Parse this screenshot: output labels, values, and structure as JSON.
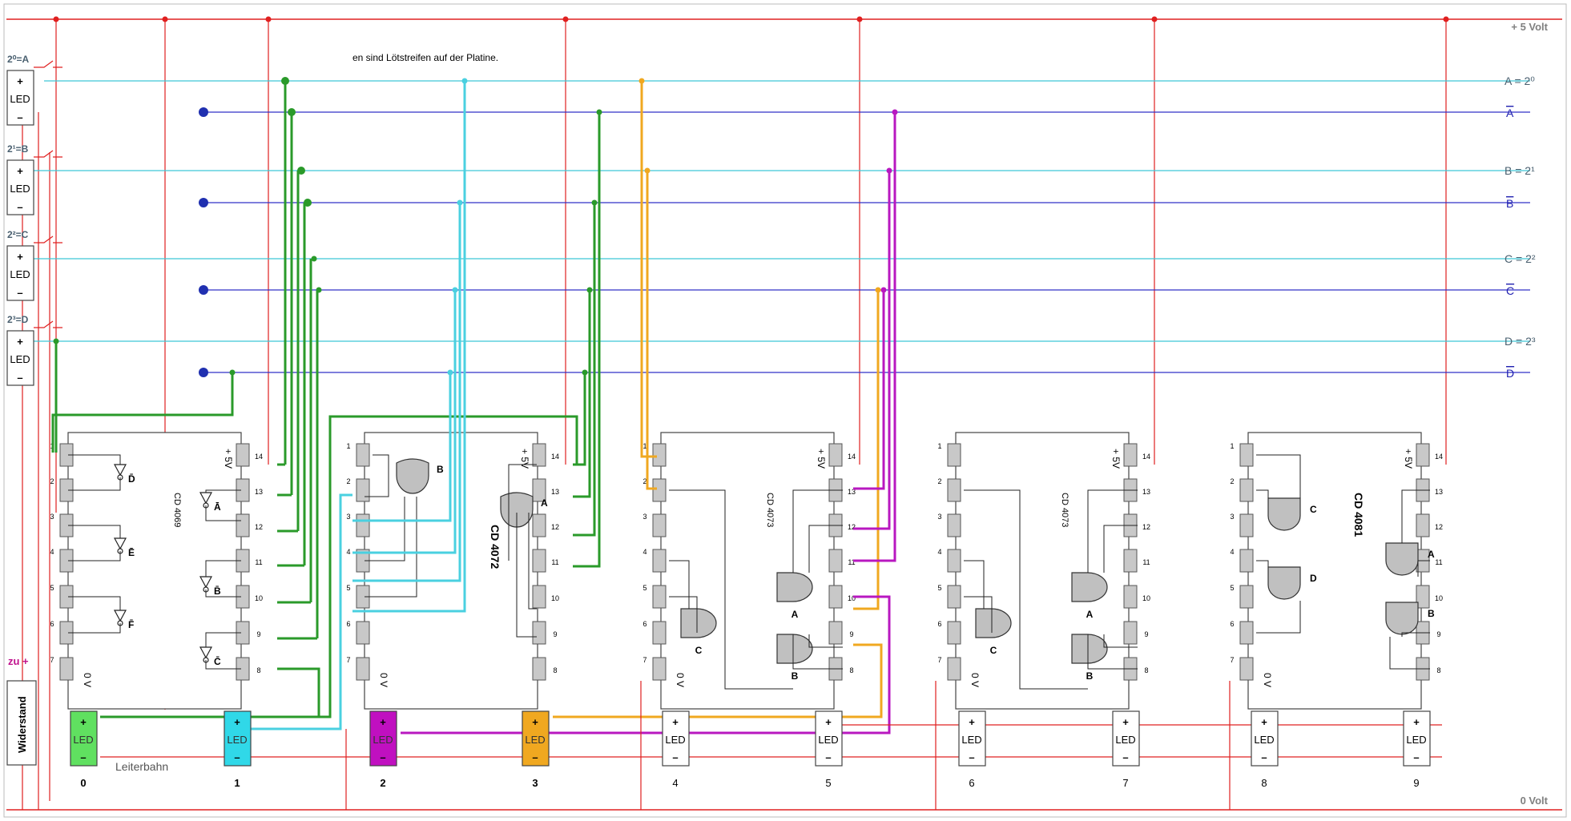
{
  "rails": {
    "top_label": "+ 5 Volt",
    "bottom_label": "0 Volt"
  },
  "note": "en sind Lötstreifen auf der Platine.",
  "inputs": [
    {
      "label": "2⁰=A",
      "bus_name": "A = 2⁰",
      "inv_name": "A"
    },
    {
      "label": "2¹=B",
      "bus_name": "B = 2¹",
      "inv_name": "B"
    },
    {
      "label": "2²=C",
      "bus_name": "C = 2²",
      "inv_name": "C"
    },
    {
      "label": "2³=D",
      "bus_name": "D = 2³",
      "inv_name": "D"
    }
  ],
  "led_text": "LED",
  "plus": "+",
  "minus": "–",
  "zu_plus": "zu +",
  "widerstand": "Widerstand",
  "leiterbahn": "Leiterbahn",
  "chips": [
    {
      "name": "CD 4069",
      "vcc": "+ 5V",
      "gnd": "0 V"
    },
    {
      "name": "CD 4072",
      "vcc": "+ 5V",
      "gnd": "0 V"
    },
    {
      "name": "CD 4073",
      "vcc": "+ 5V",
      "gnd": "0 V"
    },
    {
      "name": "CD 4073",
      "vcc": "+ 5V",
      "gnd": "0 V"
    },
    {
      "name": "CD 4081",
      "vcc": "+ 5V",
      "gnd": "0 V"
    }
  ],
  "gate_labels": {
    "inverters": [
      "D̄",
      "Ē",
      "F̄",
      "Ā",
      "B̄",
      "C̄"
    ],
    "or_gates": [
      "B",
      "A"
    ],
    "and_gates_1": [
      "C",
      "A",
      "B"
    ],
    "and_gates_2": [
      "C",
      "A",
      "B"
    ],
    "and_gates_3": [
      "C",
      "D",
      "A",
      "B"
    ]
  },
  "left_pins": [
    "1",
    "2",
    "3",
    "4",
    "5",
    "6",
    "7"
  ],
  "right_pins": [
    "14",
    "13",
    "12",
    "11",
    "10",
    "9",
    "8"
  ],
  "output_leds": [
    "0",
    "1",
    "2",
    "3",
    "4",
    "5",
    "6",
    "7",
    "8",
    "9"
  ],
  "colors": {
    "rail": "#e02020",
    "bus_true": "#3ec8d8",
    "bus_inv": "#3030c8",
    "wire_green": "#2a9a2a",
    "wire_cyan": "#4ad0e0",
    "wire_orange": "#f0a820",
    "wire_magenta": "#b818c0",
    "pin_fill": "#c8c8c8",
    "led0": "#60e060",
    "led1": "#30d8e8",
    "led2": "#c010c0",
    "led3": "#f0a820"
  }
}
